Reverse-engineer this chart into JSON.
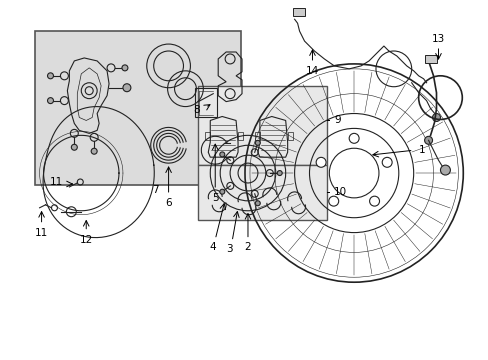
{
  "bg_color": "#ffffff",
  "box1_bg": "#e0e0e0",
  "box2_bg": "#e8e8e8",
  "line_color": "#222222",
  "label_color": "#000000",
  "fig_width": 4.89,
  "fig_height": 3.6,
  "label_fontsize": 7.5
}
